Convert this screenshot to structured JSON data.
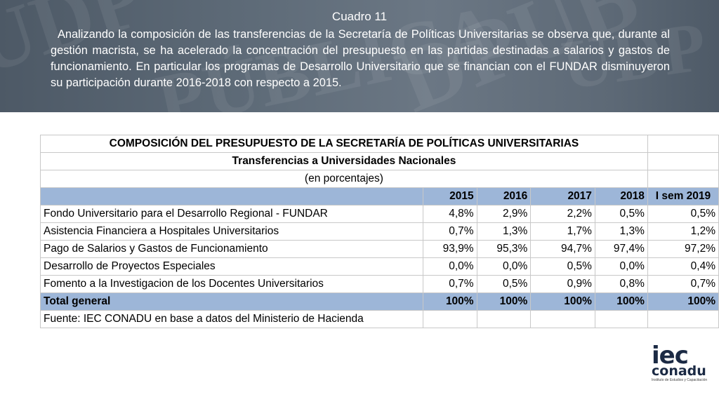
{
  "header": {
    "cuadro_title": "Cuadro 11",
    "intro_text": "Analizando la composición de las transferencias de la Secretaría de Políticas Universitarias se observa que, durante al gestión macrista, se ha acelerado la concentración del presupuesto en las partidas destinadas a salarios y gastos de funcionamiento.  En particular los programas de Desarrollo Universitario  que se financian con el FUNDAR disminuyeron su participación durante 2016-2018 con respecto a 2015."
  },
  "table": {
    "title": "COMPOSICIÓN DEL PRESUPUESTO DE LA SECRETARÍA DE POLÍTICAS UNIVERSITARIAS",
    "subtitle": "Transferencias a Universidades Nacionales",
    "unit": "(en porcentajes)",
    "columns": [
      "2015",
      "2016",
      "2017",
      "2018",
      "I sem 2019"
    ],
    "rows": [
      {
        "label": "Fondo Universitario para el Desarrollo Regional  - FUNDAR",
        "values": [
          "4,8%",
          "2,9%",
          "2,2%",
          "0,5%",
          "0,5%"
        ]
      },
      {
        "label": "Asistencia Financiera a Hospitales Universitarios",
        "values": [
          "0,7%",
          "1,3%",
          "1,7%",
          "1,3%",
          "1,2%"
        ]
      },
      {
        "label": "Pago de Salarios y Gastos de Funcionamiento",
        "values": [
          "93,9%",
          "95,3%",
          "94,7%",
          "97,4%",
          "97,2%"
        ]
      },
      {
        "label": "Desarrollo de Proyectos Especiales",
        "values": [
          "0,0%",
          "0,0%",
          "0,5%",
          "0,0%",
          "0,4%"
        ]
      },
      {
        "label": "Fomento a la Investigacion de los Docentes Universitarios",
        "values": [
          "0,7%",
          "0,5%",
          "0,9%",
          "0,8%",
          "0,7%"
        ]
      }
    ],
    "total": {
      "label": "Total general",
      "values": [
        "100%",
        "100%",
        "100%",
        "100%",
        "100%"
      ]
    },
    "source": "Fuente: IEC CONADU en base a datos del Ministerio de Hacienda"
  },
  "logo": {
    "line1": "iec",
    "line2": "conadu",
    "line3": "Instituto de Estudios y Capacitación"
  },
  "watermark": {
    "words": [
      "UDP",
      "PÚBLICA",
      "DPUB",
      "UDP"
    ]
  },
  "colors": {
    "banner": "#5e6b78",
    "header_fill": "#9db6d8",
    "logo": "#1b2a44"
  }
}
